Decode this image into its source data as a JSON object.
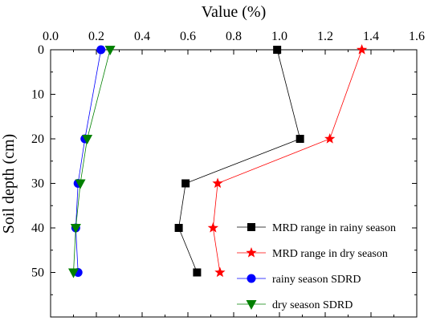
{
  "chart_data": {
    "type": "line",
    "xlabel": "Value (%)",
    "ylabel": "Soil depth (cm)",
    "xlim": [
      0.0,
      1.6
    ],
    "ylim": [
      0,
      60
    ],
    "y_inverted": true,
    "x_axis_position": "top",
    "x_ticks": [
      "0.0",
      "0.2",
      "0.4",
      "0.6",
      "0.8",
      "1.0",
      "1.2",
      "1.4",
      "1.6"
    ],
    "y_ticks": [
      "0",
      "10",
      "20",
      "30",
      "40",
      "50"
    ],
    "grid": false,
    "legend_position": "bottom-right",
    "series": [
      {
        "name": "MRD range in rainy season",
        "color": "#000000",
        "marker": "square",
        "points": [
          {
            "x": 0.99,
            "y": 0
          },
          {
            "x": 1.09,
            "y": 20
          },
          {
            "x": 0.59,
            "y": 30
          },
          {
            "x": 0.56,
            "y": 40
          },
          {
            "x": 0.64,
            "y": 50
          }
        ]
      },
      {
        "name": "MRD range in dry season",
        "color": "#ff0000",
        "marker": "star",
        "points": [
          {
            "x": 1.36,
            "y": 0
          },
          {
            "x": 1.22,
            "y": 20
          },
          {
            "x": 0.73,
            "y": 30
          },
          {
            "x": 0.71,
            "y": 40
          },
          {
            "x": 0.74,
            "y": 50
          }
        ]
      },
      {
        "name": "rainy season SDRD",
        "color": "#0000ff",
        "marker": "circle",
        "points": [
          {
            "x": 0.22,
            "y": 0
          },
          {
            "x": 0.15,
            "y": 20
          },
          {
            "x": 0.12,
            "y": 30
          },
          {
            "x": 0.11,
            "y": 40
          },
          {
            "x": 0.12,
            "y": 50
          }
        ]
      },
      {
        "name": "dry season SDRD",
        "color": "#008000",
        "marker": "triangle-down",
        "points": [
          {
            "x": 0.26,
            "y": 0
          },
          {
            "x": 0.16,
            "y": 20
          },
          {
            "x": 0.13,
            "y": 30
          },
          {
            "x": 0.11,
            "y": 40
          },
          {
            "x": 0.1,
            "y": 50
          }
        ]
      }
    ]
  }
}
